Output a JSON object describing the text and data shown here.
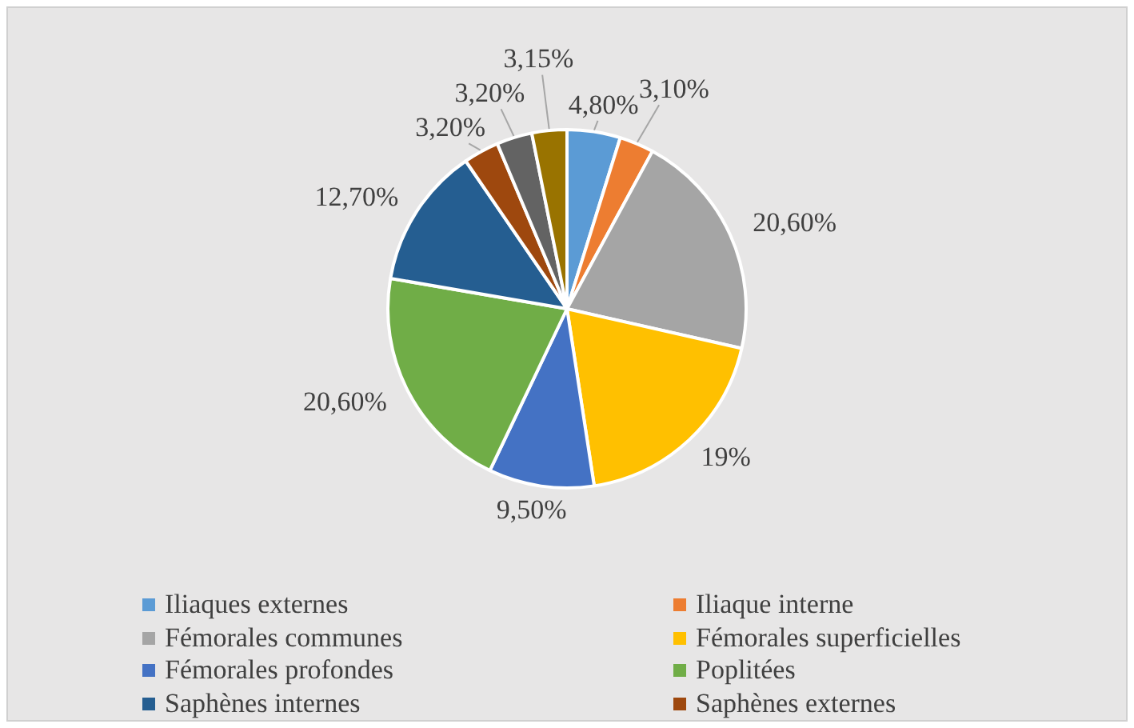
{
  "chart_data": {
    "type": "pie",
    "categories": [
      "Iliaques externes",
      "Iliaque interne",
      "Fémorales communes",
      "Fémorales superficielles",
      "Fémorales profondes",
      "Poplitées",
      "Saphènes internes",
      "Saphènes externes",
      null,
      null
    ],
    "values": [
      4.8,
      3.1,
      20.6,
      19,
      9.5,
      20.6,
      12.7,
      3.2,
      3.2,
      3.15
    ],
    "value_labels": [
      "4,80%",
      "3,10%",
      "20,60%",
      "19%",
      "9,50%",
      "20,60%",
      "12,70%",
      "3,20%",
      "3,20%",
      "3,15%"
    ],
    "colors": [
      "#5b9bd5",
      "#ed7d31",
      "#a5a5a5",
      "#ffc000",
      "#4472c4",
      "#70ad47",
      "#255e91",
      "#9e480e",
      "#636363",
      "#997300"
    ],
    "legend": "bottom"
  }
}
